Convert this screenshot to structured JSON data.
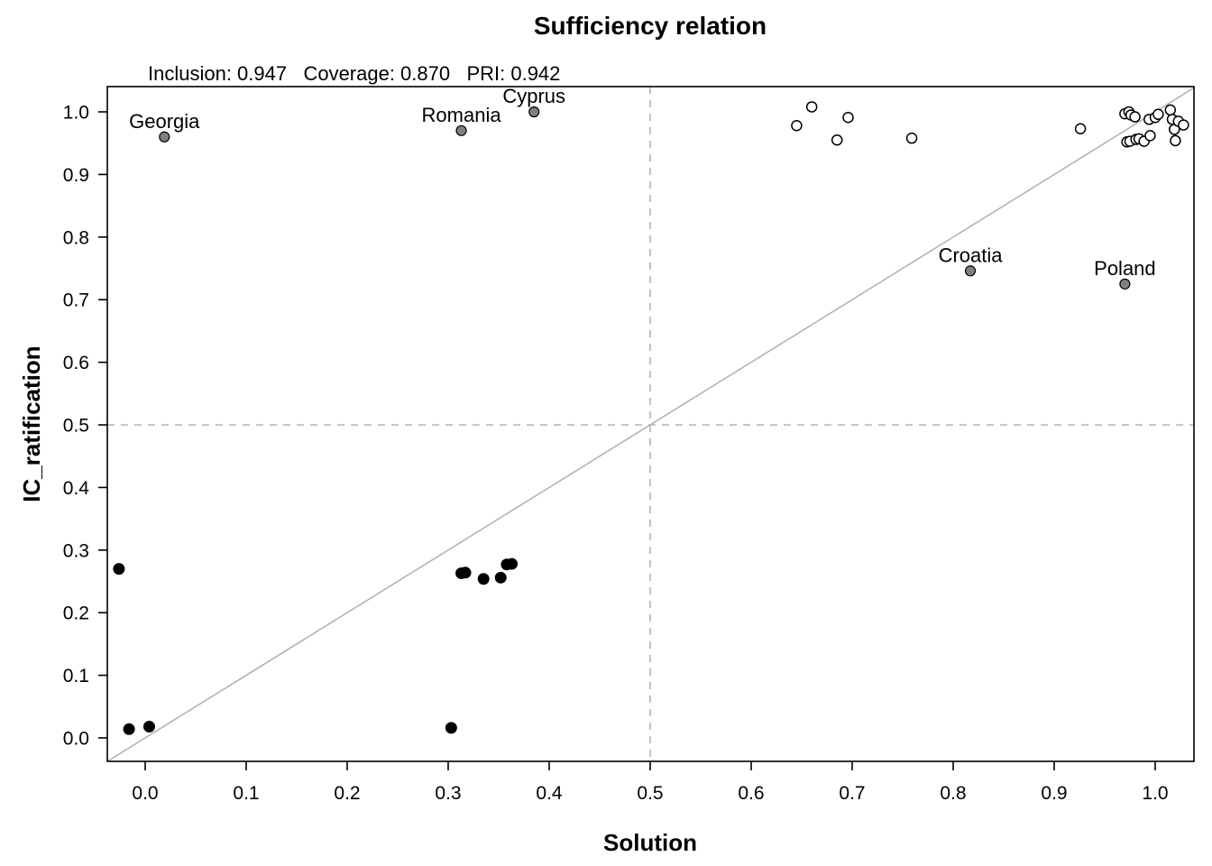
{
  "chart_data": {
    "type": "scatter",
    "title": "Sufficiency relation",
    "stats": "Inclusion: 0.947   Coverage: 0.870   PRI: 0.942",
    "xlabel": "Solution",
    "ylabel": "IC_ratification",
    "xlim": [
      -0.04,
      1.04
    ],
    "ylim": [
      -0.04,
      1.04
    ],
    "xticks": [
      "0.0",
      "0.1",
      "0.2",
      "0.3",
      "0.4",
      "0.5",
      "0.6",
      "0.7",
      "0.8",
      "0.9",
      "1.0"
    ],
    "yticks": [
      "0.0",
      "0.1",
      "0.2",
      "0.3",
      "0.4",
      "0.5",
      "0.6",
      "0.7",
      "0.8",
      "0.9",
      "1.0"
    ],
    "threshold_lines": {
      "x": 0.5,
      "y": 0.5,
      "style": "dashed",
      "color": "#b3b3b3"
    },
    "diagonal": {
      "from": [
        -0.04,
        -0.04
      ],
      "to": [
        1.04,
        1.04
      ],
      "color": "#b3b3b3"
    },
    "grid": false,
    "series": [
      {
        "marker": "filled-black",
        "color": "#000000",
        "points": [
          {
            "x": -0.026,
            "y": 0.27
          },
          {
            "x": -0.016,
            "y": 0.014
          },
          {
            "x": 0.004,
            "y": 0.018
          },
          {
            "x": 0.303,
            "y": 0.016
          },
          {
            "x": 0.313,
            "y": 0.263
          },
          {
            "x": 0.317,
            "y": 0.264
          },
          {
            "x": 0.335,
            "y": 0.254
          },
          {
            "x": 0.352,
            "y": 0.256
          },
          {
            "x": 0.358,
            "y": 0.277
          },
          {
            "x": 0.363,
            "y": 0.278
          }
        ]
      },
      {
        "marker": "filled-grey",
        "color": "#808080",
        "points": [
          {
            "x": 0.019,
            "y": 0.96,
            "label": "Georgia"
          },
          {
            "x": 0.313,
            "y": 0.97,
            "label": "Romania"
          },
          {
            "x": 0.385,
            "y": 1.0,
            "label": "Cyprus"
          },
          {
            "x": 0.817,
            "y": 0.746,
            "label": "Croatia"
          },
          {
            "x": 0.97,
            "y": 0.725,
            "label": "Poland"
          }
        ]
      },
      {
        "marker": "open",
        "color": "#000000",
        "points": [
          {
            "x": 0.645,
            "y": 0.978
          },
          {
            "x": 0.66,
            "y": 1.008
          },
          {
            "x": 0.685,
            "y": 0.955
          },
          {
            "x": 0.696,
            "y": 0.991
          },
          {
            "x": 0.759,
            "y": 0.958
          },
          {
            "x": 0.926,
            "y": 0.973
          },
          {
            "x": 0.97,
            "y": 0.997
          },
          {
            "x": 0.972,
            "y": 0.952
          },
          {
            "x": 0.974,
            "y": 1.0
          },
          {
            "x": 0.975,
            "y": 0.953
          },
          {
            "x": 0.976,
            "y": 0.995
          },
          {
            "x": 0.98,
            "y": 0.992
          },
          {
            "x": 0.981,
            "y": 0.956
          },
          {
            "x": 0.984,
            "y": 0.957
          },
          {
            "x": 0.989,
            "y": 0.953
          },
          {
            "x": 0.994,
            "y": 0.988
          },
          {
            "x": 0.995,
            "y": 0.962
          },
          {
            "x": 1.0,
            "y": 0.991
          },
          {
            "x": 1.003,
            "y": 0.996
          },
          {
            "x": 1.015,
            "y": 1.003
          },
          {
            "x": 1.017,
            "y": 0.988
          },
          {
            "x": 1.019,
            "y": 0.972
          },
          {
            "x": 1.02,
            "y": 0.954
          },
          {
            "x": 1.023,
            "y": 0.985
          },
          {
            "x": 1.028,
            "y": 0.979
          }
        ]
      }
    ]
  }
}
